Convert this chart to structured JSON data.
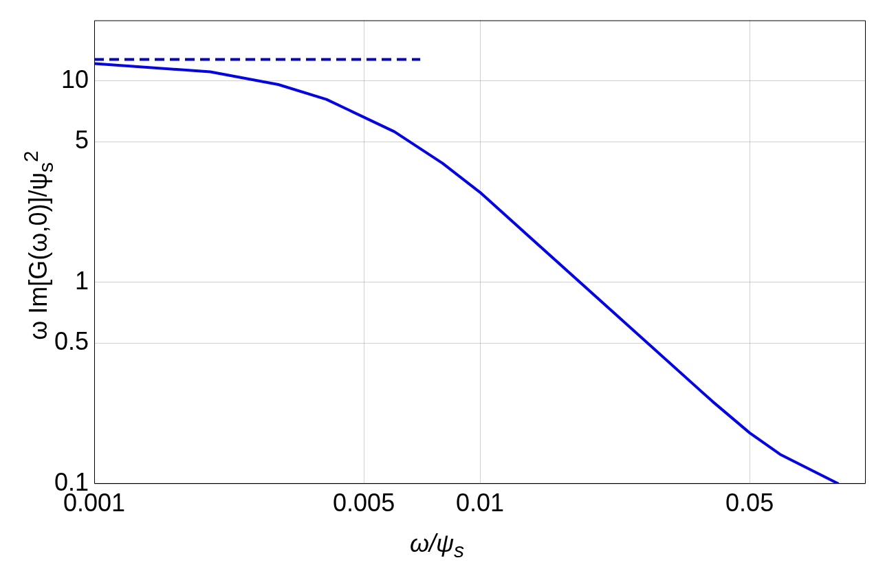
{
  "chart_data": {
    "type": "line",
    "xlabel": "ω/ψ$_{s}$",
    "ylabel": "ω Im[G(ω,0)]/ψ$_{s}$$^{2}$",
    "log": "xy",
    "grid": true,
    "legend": false,
    "marker": "none",
    "xlim": [
      0.001,
      0.1
    ],
    "xticks": [
      0.001,
      0.005,
      0.01,
      0.05
    ],
    "ylim": [
      0.1,
      20
    ],
    "yticks": [
      0.1,
      0.5,
      1,
      5,
      10
    ],
    "series": [
      {
        "color": "#0000ff",
        "line_style": "solid",
        "x": [
          0.001,
          0.002,
          0.003,
          0.004,
          0.006,
          0.008,
          0.01,
          0.04,
          0.05,
          0.06,
          0.085
        ],
        "values": [
          12.2,
          11.1,
          9.6,
          8.1,
          5.6,
          3.9,
          2.8,
          0.257,
          0.179,
          0.14,
          0.1
        ]
      },
      {
        "color": "#0000cc",
        "line_style": "dashed",
        "x": [
          0.001,
          0.007
        ],
        "values": [
          12.8,
          12.8
        ]
      }
    ]
  }
}
